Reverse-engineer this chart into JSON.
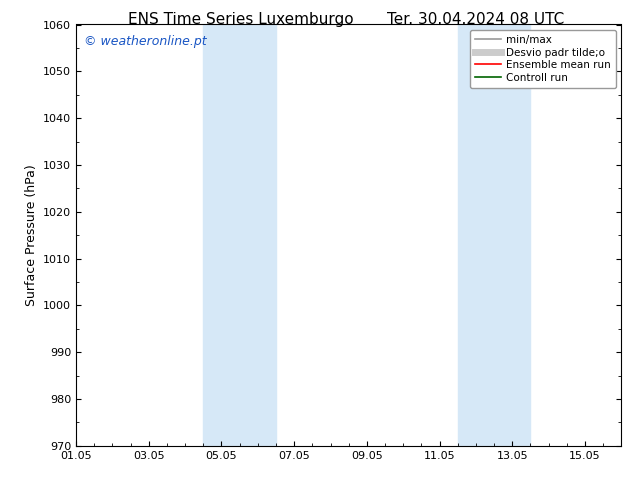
{
  "title_left": "ENS Time Series Luxemburgo",
  "title_right": "Ter. 30.04.2024 08 UTC",
  "ylabel": "Surface Pressure (hPa)",
  "ylim": [
    970,
    1060
  ],
  "yticks": [
    970,
    980,
    990,
    1000,
    1010,
    1020,
    1030,
    1040,
    1050,
    1060
  ],
  "xtick_labels": [
    "01.05",
    "03.05",
    "05.05",
    "07.05",
    "09.05",
    "11.05",
    "13.05",
    "15.05"
  ],
  "xtick_positions": [
    0,
    2,
    4,
    6,
    8,
    10,
    12,
    14
  ],
  "xlim": [
    0,
    15
  ],
  "shaded_bands": [
    {
      "xmin": 3.5,
      "xmax": 5.5
    },
    {
      "xmin": 10.5,
      "xmax": 12.5
    }
  ],
  "shade_color": "#d6e8f7",
  "watermark": "© weatheronline.pt",
  "watermark_color": "#1a56c4",
  "legend_entries": [
    {
      "label": "min/max",
      "color": "#999999",
      "lw": 1.2,
      "style": "solid"
    },
    {
      "label": "Desvio padr tilde;o",
      "color": "#cccccc",
      "lw": 5,
      "style": "solid"
    },
    {
      "label": "Ensemble mean run",
      "color": "#ff0000",
      "lw": 1.2,
      "style": "solid"
    },
    {
      "label": "Controll run",
      "color": "#006400",
      "lw": 1.2,
      "style": "solid"
    }
  ],
  "bg_color": "#ffffff",
  "spine_color": "#000000",
  "tick_color": "#000000",
  "title_fontsize": 11,
  "ylabel_fontsize": 9,
  "tick_fontsize": 8,
  "watermark_fontsize": 9,
  "legend_fontsize": 7.5
}
